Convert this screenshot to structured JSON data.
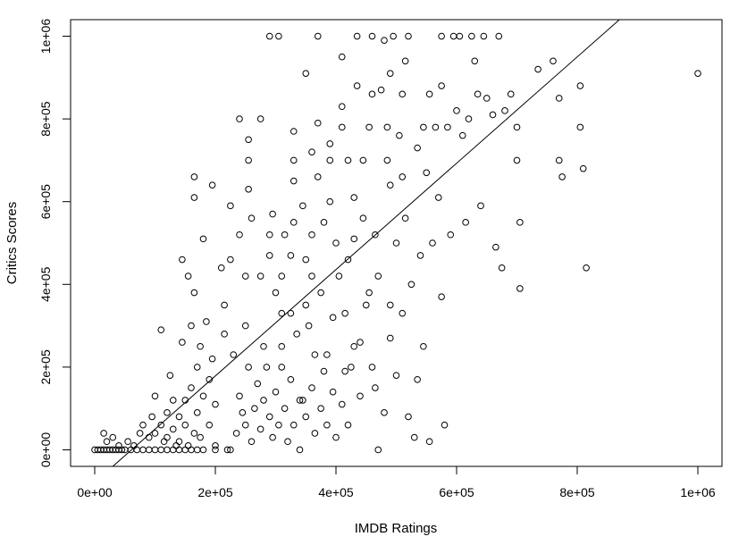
{
  "chart_data": {
    "type": "scatter",
    "title": "",
    "xlabel": "IMDB Ratings",
    "ylabel": "Critics Scores",
    "xlim": [
      -40000,
      1040000
    ],
    "ylim": [
      -40000,
      1040000
    ],
    "xticks": [
      0,
      200000,
      400000,
      600000,
      800000,
      1000000
    ],
    "xtick_labels": [
      "0e+00",
      "2e+05",
      "4e+05",
      "6e+05",
      "8e+05",
      "1e+06"
    ],
    "yticks": [
      0,
      200000,
      400000,
      600000,
      800000,
      1000000
    ],
    "ytick_labels": [
      "0e+00",
      "2e+05",
      "4e+05",
      "6e+05",
      "8e+05",
      "1e+06"
    ],
    "grid": false,
    "legend": "none",
    "marker": "open-circle",
    "regression_line": {
      "x": [
        30000,
        870000
      ],
      "y": [
        -40000,
        1040000
      ]
    },
    "points": [
      [
        0,
        0
      ],
      [
        5000,
        0
      ],
      [
        10000,
        0
      ],
      [
        15000,
        0
      ],
      [
        20000,
        0
      ],
      [
        25000,
        0
      ],
      [
        30000,
        0
      ],
      [
        35000,
        0
      ],
      [
        40000,
        0
      ],
      [
        45000,
        0
      ],
      [
        50000,
        0
      ],
      [
        60000,
        0
      ],
      [
        70000,
        0
      ],
      [
        80000,
        0
      ],
      [
        90000,
        0
      ],
      [
        100000,
        0
      ],
      [
        110000,
        0
      ],
      [
        120000,
        0
      ],
      [
        130000,
        0
      ],
      [
        140000,
        0
      ],
      [
        150000,
        0
      ],
      [
        160000,
        0
      ],
      [
        170000,
        0
      ],
      [
        180000,
        0
      ],
      [
        200000,
        0
      ],
      [
        220000,
        0
      ],
      [
        15000,
        40000
      ],
      [
        20000,
        20000
      ],
      [
        30000,
        30000
      ],
      [
        40000,
        10000
      ],
      [
        55000,
        20000
      ],
      [
        65000,
        10000
      ],
      [
        75000,
        40000
      ],
      [
        80000,
        60000
      ],
      [
        90000,
        30000
      ],
      [
        95000,
        80000
      ],
      [
        100000,
        40000
      ],
      [
        100000,
        130000
      ],
      [
        110000,
        60000
      ],
      [
        115000,
        20000
      ],
      [
        120000,
        90000
      ],
      [
        120000,
        30000
      ],
      [
        125000,
        180000
      ],
      [
        130000,
        120000
      ],
      [
        130000,
        50000
      ],
      [
        135000,
        10000
      ],
      [
        140000,
        80000
      ],
      [
        140000,
        20000
      ],
      [
        145000,
        260000
      ],
      [
        150000,
        60000
      ],
      [
        150000,
        120000
      ],
      [
        155000,
        10000
      ],
      [
        160000,
        300000
      ],
      [
        160000,
        150000
      ],
      [
        165000,
        40000
      ],
      [
        170000,
        200000
      ],
      [
        170000,
        90000
      ],
      [
        175000,
        250000
      ],
      [
        175000,
        30000
      ],
      [
        180000,
        130000
      ],
      [
        185000,
        310000
      ],
      [
        190000,
        60000
      ],
      [
        190000,
        170000
      ],
      [
        195000,
        220000
      ],
      [
        200000,
        10000
      ],
      [
        200000,
        110000
      ],
      [
        110000,
        290000
      ],
      [
        145000,
        460000
      ],
      [
        155000,
        420000
      ],
      [
        165000,
        380000
      ],
      [
        165000,
        610000
      ],
      [
        165000,
        660000
      ],
      [
        180000,
        510000
      ],
      [
        195000,
        640000
      ],
      [
        210000,
        440000
      ],
      [
        215000,
        350000
      ],
      [
        215000,
        280000
      ],
      [
        225000,
        460000
      ],
      [
        225000,
        590000
      ],
      [
        230000,
        230000
      ],
      [
        240000,
        520000
      ],
      [
        240000,
        800000
      ],
      [
        250000,
        420000
      ],
      [
        255000,
        750000
      ],
      [
        255000,
        700000
      ],
      [
        255000,
        630000
      ],
      [
        250000,
        300000
      ],
      [
        260000,
        560000
      ],
      [
        275000,
        800000
      ],
      [
        275000,
        420000
      ],
      [
        280000,
        250000
      ],
      [
        290000,
        520000
      ],
      [
        290000,
        470000
      ],
      [
        290000,
        1000000
      ],
      [
        295000,
        570000
      ],
      [
        300000,
        380000
      ],
      [
        305000,
        1000000
      ],
      [
        310000,
        420000
      ],
      [
        310000,
        330000
      ],
      [
        310000,
        200000
      ],
      [
        315000,
        520000
      ],
      [
        325000,
        470000
      ],
      [
        325000,
        330000
      ],
      [
        330000,
        770000
      ],
      [
        330000,
        700000
      ],
      [
        330000,
        650000
      ],
      [
        330000,
        550000
      ],
      [
        335000,
        280000
      ],
      [
        340000,
        120000
      ],
      [
        345000,
        590000
      ],
      [
        350000,
        910000
      ],
      [
        350000,
        460000
      ],
      [
        350000,
        350000
      ],
      [
        360000,
        720000
      ],
      [
        360000,
        520000
      ],
      [
        360000,
        420000
      ],
      [
        365000,
        230000
      ],
      [
        370000,
        1000000
      ],
      [
        370000,
        790000
      ],
      [
        370000,
        660000
      ],
      [
        375000,
        380000
      ],
      [
        380000,
        550000
      ],
      [
        385000,
        230000
      ],
      [
        390000,
        740000
      ],
      [
        390000,
        700000
      ],
      [
        390000,
        600000
      ],
      [
        395000,
        320000
      ],
      [
        400000,
        500000
      ],
      [
        405000,
        420000
      ],
      [
        410000,
        830000
      ],
      [
        410000,
        780000
      ],
      [
        410000,
        950000
      ],
      [
        415000,
        330000
      ],
      [
        420000,
        700000
      ],
      [
        420000,
        460000
      ],
      [
        425000,
        200000
      ],
      [
        430000,
        610000
      ],
      [
        430000,
        510000
      ],
      [
        435000,
        880000
      ],
      [
        435000,
        1000000
      ],
      [
        440000,
        260000
      ],
      [
        445000,
        700000
      ],
      [
        445000,
        560000
      ],
      [
        455000,
        780000
      ],
      [
        455000,
        380000
      ],
      [
        460000,
        860000
      ],
      [
        460000,
        1000000
      ],
      [
        465000,
        520000
      ],
      [
        465000,
        150000
      ],
      [
        470000,
        420000
      ],
      [
        470000,
        0
      ],
      [
        475000,
        870000
      ],
      [
        480000,
        990000
      ],
      [
        485000,
        780000
      ],
      [
        485000,
        700000
      ],
      [
        490000,
        910000
      ],
      [
        490000,
        640000
      ],
      [
        490000,
        350000
      ],
      [
        495000,
        1000000
      ],
      [
        500000,
        500000
      ],
      [
        505000,
        760000
      ],
      [
        510000,
        860000
      ],
      [
        510000,
        660000
      ],
      [
        515000,
        940000
      ],
      [
        515000,
        560000
      ],
      [
        520000,
        1000000
      ],
      [
        525000,
        400000
      ],
      [
        530000,
        30000
      ],
      [
        535000,
        730000
      ],
      [
        540000,
        470000
      ],
      [
        545000,
        780000
      ],
      [
        550000,
        670000
      ],
      [
        555000,
        860000
      ],
      [
        555000,
        20000
      ],
      [
        560000,
        500000
      ],
      [
        565000,
        780000
      ],
      [
        570000,
        610000
      ],
      [
        575000,
        1000000
      ],
      [
        575000,
        880000
      ],
      [
        575000,
        370000
      ],
      [
        580000,
        60000
      ],
      [
        585000,
        780000
      ],
      [
        590000,
        520000
      ],
      [
        595000,
        1000000
      ],
      [
        600000,
        820000
      ],
      [
        605000,
        1000000
      ],
      [
        610000,
        760000
      ],
      [
        615000,
        550000
      ],
      [
        620000,
        800000
      ],
      [
        625000,
        1000000
      ],
      [
        630000,
        940000
      ],
      [
        635000,
        860000
      ],
      [
        640000,
        590000
      ],
      [
        645000,
        1000000
      ],
      [
        650000,
        850000
      ],
      [
        660000,
        810000
      ],
      [
        665000,
        490000
      ],
      [
        670000,
        1000000
      ],
      [
        675000,
        440000
      ],
      [
        680000,
        820000
      ],
      [
        690000,
        860000
      ],
      [
        700000,
        780000
      ],
      [
        700000,
        700000
      ],
      [
        705000,
        550000
      ],
      [
        705000,
        390000
      ],
      [
        735000,
        920000
      ],
      [
        760000,
        940000
      ],
      [
        770000,
        850000
      ],
      [
        770000,
        700000
      ],
      [
        775000,
        660000
      ],
      [
        805000,
        880000
      ],
      [
        805000,
        780000
      ],
      [
        810000,
        680000
      ],
      [
        815000,
        440000
      ],
      [
        1000000,
        910000
      ],
      [
        225000,
        0
      ],
      [
        235000,
        40000
      ],
      [
        240000,
        130000
      ],
      [
        245000,
        90000
      ],
      [
        250000,
        60000
      ],
      [
        255000,
        200000
      ],
      [
        260000,
        20000
      ],
      [
        265000,
        100000
      ],
      [
        270000,
        160000
      ],
      [
        275000,
        50000
      ],
      [
        280000,
        120000
      ],
      [
        285000,
        200000
      ],
      [
        290000,
        80000
      ],
      [
        295000,
        30000
      ],
      [
        300000,
        140000
      ],
      [
        305000,
        60000
      ],
      [
        310000,
        250000
      ],
      [
        315000,
        100000
      ],
      [
        320000,
        20000
      ],
      [
        325000,
        170000
      ],
      [
        330000,
        60000
      ],
      [
        340000,
        0
      ],
      [
        345000,
        120000
      ],
      [
        350000,
        80000
      ],
      [
        355000,
        300000
      ],
      [
        360000,
        150000
      ],
      [
        365000,
        40000
      ],
      [
        375000,
        100000
      ],
      [
        380000,
        190000
      ],
      [
        385000,
        60000
      ],
      [
        395000,
        140000
      ],
      [
        400000,
        30000
      ],
      [
        410000,
        110000
      ],
      [
        415000,
        190000
      ],
      [
        420000,
        60000
      ],
      [
        430000,
        250000
      ],
      [
        440000,
        130000
      ],
      [
        450000,
        350000
      ],
      [
        460000,
        200000
      ],
      [
        480000,
        90000
      ],
      [
        490000,
        270000
      ],
      [
        500000,
        180000
      ],
      [
        510000,
        330000
      ],
      [
        520000,
        80000
      ],
      [
        535000,
        170000
      ],
      [
        545000,
        250000
      ]
    ]
  }
}
